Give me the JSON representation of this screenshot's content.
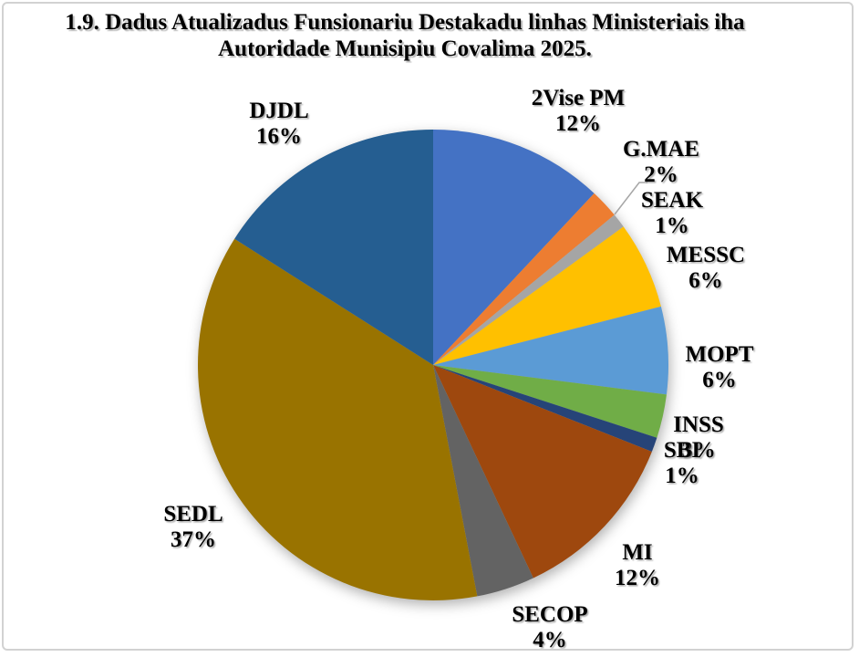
{
  "title": {
    "line1": "1.9. Dadus Atualizadus Funsionariu Destakadu linhas Ministeriais iha",
    "line2": "Autoridade Munisipiu Covalima 2025."
  },
  "chart_data": {
    "type": "pie",
    "title": "1.9. Dadus Atualizadus Funsionariu Destakadu linhas Ministeriais iha Autoridade Munisipiu Covalima 2025.",
    "value_format": "percent",
    "start_angle_deg": 0,
    "direction": "clockwise",
    "slices": [
      {
        "label": "2Vise PM",
        "value": 12,
        "display": "12%",
        "color": "#4472C4"
      },
      {
        "label": "G.MAE",
        "value": 2,
        "display": "2%",
        "color": "#ED7D31"
      },
      {
        "label": "SEAK",
        "value": 1,
        "display": "1%",
        "color": "#A5A5A5"
      },
      {
        "label": "MESSC",
        "value": 6,
        "display": "6%",
        "color": "#FFC000"
      },
      {
        "label": "MOPT",
        "value": 6,
        "display": "6%",
        "color": "#5B9BD5"
      },
      {
        "label": "INSS",
        "value": 3,
        "display": "3%",
        "color": "#70AD47"
      },
      {
        "label": "SBI",
        "value": 1,
        "display": "1%",
        "color": "#264478"
      },
      {
        "label": "MI",
        "value": 12,
        "display": "12%",
        "color": "#9E480E"
      },
      {
        "label": "SECOP",
        "value": 4,
        "display": "4%",
        "color": "#636363"
      },
      {
        "label": "SEDL",
        "value": 37,
        "display": "37%",
        "color": "#997300"
      },
      {
        "label": "DJDL",
        "value": 16,
        "display": "16%",
        "color": "#255E91"
      }
    ],
    "leader_line": {
      "for_slice": "G.MAE",
      "color": "#A6A6A6"
    }
  },
  "frame": {
    "border_color": "#D2D2D2",
    "background": "#FFFFFF"
  }
}
